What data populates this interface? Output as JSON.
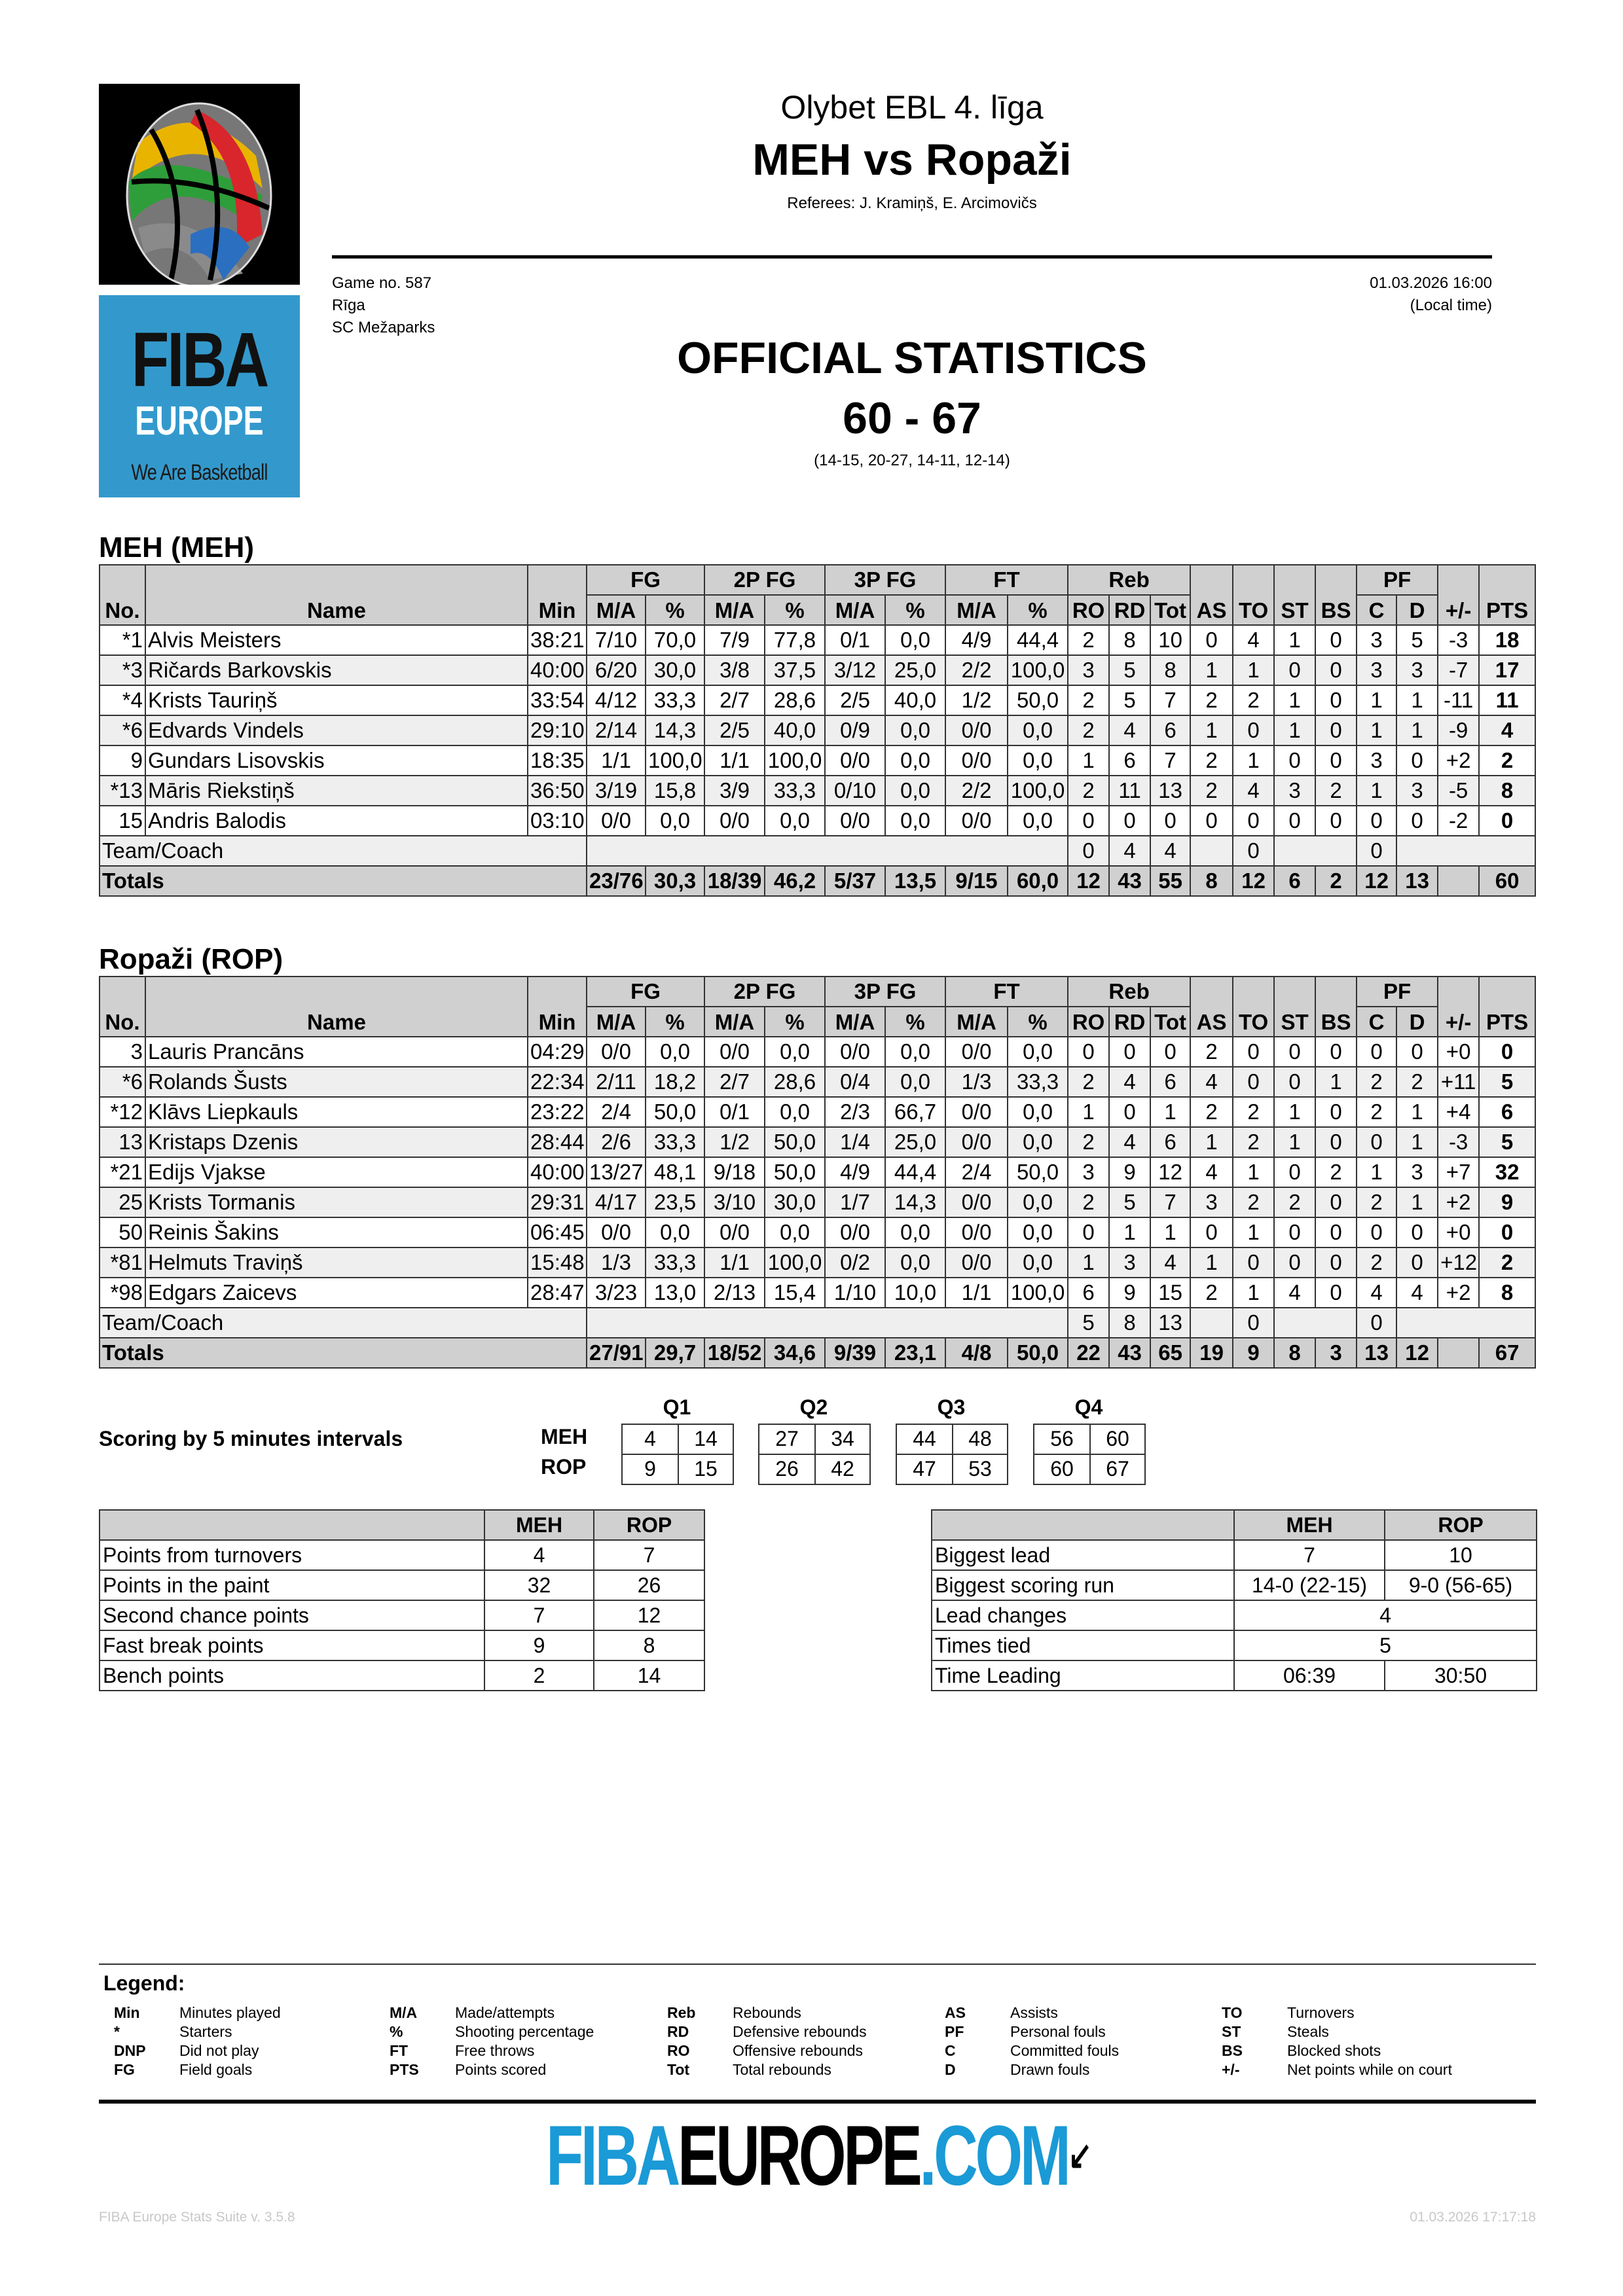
{
  "logos": {
    "fiba_europe": {
      "line1": "FIBA",
      "line2": "EUROPE",
      "line3": "We Are Basketball",
      "bg": "#3399cc"
    },
    "bottom": {
      "part1": "FIBA",
      "part2": "EUROPE",
      "part3": ".COM",
      "blue": "#1a9ad6"
    }
  },
  "header": {
    "league": "Olybet EBL 4. līga",
    "matchup": "MEH vs Ropaži",
    "referees": "Referees: J. Kramiņš, E. Arcimovičs",
    "game_no": "Game no. 587",
    "city": "Rīga",
    "venue": "SC Mežaparks",
    "datetime": "01.03.2026 16:00",
    "local_time": "(Local time)",
    "title": "OFFICIAL STATISTICS",
    "score": "60 - 67",
    "quarters": "(14-15, 20-27, 14-11, 12-14)"
  },
  "columns": {
    "no": "No.",
    "name": "Name",
    "min": "Min",
    "fg": "FG",
    "p2": "2P FG",
    "p3": "3P FG",
    "ft": "FT",
    "reb": "Reb",
    "ma": "M/A",
    "pct": "%",
    "ro": "RO",
    "rd": "RD",
    "tot": "Tot",
    "as": "AS",
    "to": "TO",
    "st": "ST",
    "bs": "BS",
    "pf": "PF",
    "c": "C",
    "d": "D",
    "pm": "+/-",
    "pts": "PTS"
  },
  "teams": [
    {
      "title": "MEH (MEH)",
      "players": [
        [
          "*1",
          "Alvis Meisters",
          "38:21",
          "7/10",
          "70,0",
          "7/9",
          "77,8",
          "0/1",
          "0,0",
          "4/9",
          "44,4",
          "2",
          "8",
          "10",
          "0",
          "4",
          "1",
          "0",
          "3",
          "5",
          "-3",
          "18"
        ],
        [
          "*3",
          "Ričards Barkovskis",
          "40:00",
          "6/20",
          "30,0",
          "3/8",
          "37,5",
          "3/12",
          "25,0",
          "2/2",
          "100,0",
          "3",
          "5",
          "8",
          "1",
          "1",
          "0",
          "0",
          "3",
          "3",
          "-7",
          "17"
        ],
        [
          "*4",
          "Krists Tauriņš",
          "33:54",
          "4/12",
          "33,3",
          "2/7",
          "28,6",
          "2/5",
          "40,0",
          "1/2",
          "50,0",
          "2",
          "5",
          "7",
          "2",
          "2",
          "1",
          "0",
          "1",
          "1",
          "-11",
          "11"
        ],
        [
          "*6",
          "Edvards Vindels",
          "29:10",
          "2/14",
          "14,3",
          "2/5",
          "40,0",
          "0/9",
          "0,0",
          "0/0",
          "0,0",
          "2",
          "4",
          "6",
          "1",
          "0",
          "1",
          "0",
          "1",
          "1",
          "-9",
          "4"
        ],
        [
          "9",
          "Gundars Lisovskis",
          "18:35",
          "1/1",
          "100,0",
          "1/1",
          "100,0",
          "0/0",
          "0,0",
          "0/0",
          "0,0",
          "1",
          "6",
          "7",
          "2",
          "1",
          "0",
          "0",
          "3",
          "0",
          "+2",
          "2"
        ],
        [
          "*13",
          "Māris Riekstiņš",
          "36:50",
          "3/19",
          "15,8",
          "3/9",
          "33,3",
          "0/10",
          "0,0",
          "2/2",
          "100,0",
          "2",
          "11",
          "13",
          "2",
          "4",
          "3",
          "2",
          "1",
          "3",
          "-5",
          "8"
        ],
        [
          "15",
          "Andris Balodis",
          "03:10",
          "0/0",
          "0,0",
          "0/0",
          "0,0",
          "0/0",
          "0,0",
          "0/0",
          "0,0",
          "0",
          "0",
          "0",
          "0",
          "0",
          "0",
          "0",
          "0",
          "0",
          "-2",
          "0"
        ]
      ],
      "team_coach": {
        "label": "Team/Coach",
        "ro": "0",
        "rd": "4",
        "tot": "4",
        "to": "0",
        "c": "0"
      },
      "totals": {
        "label": "Totals",
        "values": [
          "23/76",
          "30,3",
          "18/39",
          "46,2",
          "5/37",
          "13,5",
          "9/15",
          "60,0",
          "12",
          "43",
          "55",
          "8",
          "12",
          "6",
          "2",
          "12",
          "13"
        ],
        "pts": "60"
      }
    },
    {
      "title": "Ropaži (ROP)",
      "players": [
        [
          "3",
          "Lauris Prancāns",
          "04:29",
          "0/0",
          "0,0",
          "0/0",
          "0,0",
          "0/0",
          "0,0",
          "0/0",
          "0,0",
          "0",
          "0",
          "0",
          "2",
          "0",
          "0",
          "0",
          "0",
          "0",
          "+0",
          "0"
        ],
        [
          "*6",
          "Rolands Šusts",
          "22:34",
          "2/11",
          "18,2",
          "2/7",
          "28,6",
          "0/4",
          "0,0",
          "1/3",
          "33,3",
          "2",
          "4",
          "6",
          "4",
          "0",
          "0",
          "1",
          "2",
          "2",
          "+11",
          "5"
        ],
        [
          "*12",
          "Klāvs Liepkauls",
          "23:22",
          "2/4",
          "50,0",
          "0/1",
          "0,0",
          "2/3",
          "66,7",
          "0/0",
          "0,0",
          "1",
          "0",
          "1",
          "2",
          "2",
          "1",
          "0",
          "2",
          "1",
          "+4",
          "6"
        ],
        [
          "13",
          "Kristaps Dzenis",
          "28:44",
          "2/6",
          "33,3",
          "1/2",
          "50,0",
          "1/4",
          "25,0",
          "0/0",
          "0,0",
          "2",
          "4",
          "6",
          "1",
          "2",
          "1",
          "0",
          "0",
          "1",
          "-3",
          "5"
        ],
        [
          "*21",
          "Edijs Vjakse",
          "40:00",
          "13/27",
          "48,1",
          "9/18",
          "50,0",
          "4/9",
          "44,4",
          "2/4",
          "50,0",
          "3",
          "9",
          "12",
          "4",
          "1",
          "0",
          "2",
          "1",
          "3",
          "+7",
          "32"
        ],
        [
          "25",
          "Krists Tormanis",
          "29:31",
          "4/17",
          "23,5",
          "3/10",
          "30,0",
          "1/7",
          "14,3",
          "0/0",
          "0,0",
          "2",
          "5",
          "7",
          "3",
          "2",
          "2",
          "0",
          "2",
          "1",
          "+2",
          "9"
        ],
        [
          "50",
          "Reinis Šakins",
          "06:45",
          "0/0",
          "0,0",
          "0/0",
          "0,0",
          "0/0",
          "0,0",
          "0/0",
          "0,0",
          "0",
          "1",
          "1",
          "0",
          "1",
          "0",
          "0",
          "0",
          "0",
          "+0",
          "0"
        ],
        [
          "*81",
          "Helmuts Traviņš",
          "15:48",
          "1/3",
          "33,3",
          "1/1",
          "100,0",
          "0/2",
          "0,0",
          "0/0",
          "0,0",
          "1",
          "3",
          "4",
          "1",
          "0",
          "0",
          "0",
          "2",
          "0",
          "+12",
          "2"
        ],
        [
          "*98",
          "Edgars Zaicevs",
          "28:47",
          "3/23",
          "13,0",
          "2/13",
          "15,4",
          "1/10",
          "10,0",
          "1/1",
          "100,0",
          "6",
          "9",
          "15",
          "2",
          "1",
          "4",
          "0",
          "4",
          "4",
          "+2",
          "8"
        ]
      ],
      "team_coach": {
        "label": "Team/Coach",
        "ro": "5",
        "rd": "8",
        "tot": "13",
        "to": "0",
        "c": "0"
      },
      "totals": {
        "label": "Totals",
        "values": [
          "27/91",
          "29,7",
          "18/52",
          "34,6",
          "9/39",
          "23,1",
          "4/8",
          "50,0",
          "22",
          "43",
          "65",
          "19",
          "9",
          "8",
          "3",
          "13",
          "12"
        ],
        "pts": "67"
      }
    }
  ],
  "intervals": {
    "label": "Scoring by 5 minutes intervals",
    "quarters": [
      "Q1",
      "Q2",
      "Q3",
      "Q4"
    ],
    "teams": [
      {
        "code": "MEH",
        "scores": [
          [
            "4",
            "14"
          ],
          [
            "27",
            "34"
          ],
          [
            "44",
            "48"
          ],
          [
            "56",
            "60"
          ]
        ]
      },
      {
        "code": "ROP",
        "scores": [
          [
            "9",
            "15"
          ],
          [
            "26",
            "42"
          ],
          [
            "47",
            "53"
          ],
          [
            "60",
            "67"
          ]
        ]
      }
    ]
  },
  "stats_left": {
    "headers": [
      "",
      "MEH",
      "ROP"
    ],
    "rows": [
      [
        "Points from turnovers",
        "4",
        "7"
      ],
      [
        "Points in the paint",
        "32",
        "26"
      ],
      [
        "Second chance points",
        "7",
        "12"
      ],
      [
        "Fast break points",
        "9",
        "8"
      ],
      [
        "Bench points",
        "2",
        "14"
      ]
    ]
  },
  "stats_right": {
    "headers": [
      "",
      "MEH",
      "ROP"
    ],
    "rows": [
      [
        "Biggest lead",
        "7",
        "10"
      ],
      [
        "Biggest scoring run",
        "14-0 (22-15)",
        "9-0 (56-65)"
      ],
      [
        "Lead changes",
        "4"
      ],
      [
        "Times tied",
        "5"
      ],
      [
        "Time Leading",
        "06:39",
        "30:50"
      ]
    ]
  },
  "legend": {
    "title": "Legend:",
    "columns": [
      [
        [
          "Min",
          "Minutes played"
        ],
        [
          "*",
          "Starters"
        ],
        [
          "DNP",
          "Did not play"
        ],
        [
          "FG",
          "Field goals"
        ]
      ],
      [
        [
          "M/A",
          "Made/attempts"
        ],
        [
          "%",
          "Shooting percentage"
        ],
        [
          "FT",
          "Free throws"
        ],
        [
          "PTS",
          "Points scored"
        ]
      ],
      [
        [
          "Reb",
          "Rebounds"
        ],
        [
          "RD",
          "Defensive rebounds"
        ],
        [
          "RO",
          "Offensive rebounds"
        ],
        [
          "Tot",
          "Total rebounds"
        ]
      ],
      [
        [
          "AS",
          "Assists"
        ],
        [
          "PF",
          "Personal fouls"
        ],
        [
          "C",
          "Committed fouls"
        ],
        [
          "D",
          "Drawn fouls"
        ]
      ],
      [
        [
          "TO",
          "Turnovers"
        ],
        [
          "ST",
          "Steals"
        ],
        [
          "BS",
          "Blocked shots"
        ],
        [
          "+/-",
          "Net points while on court"
        ]
      ]
    ]
  },
  "footer": {
    "version": "FIBA Europe Stats Suite v. 3.5.8",
    "printed": "01.03.2026 17:17:18"
  }
}
